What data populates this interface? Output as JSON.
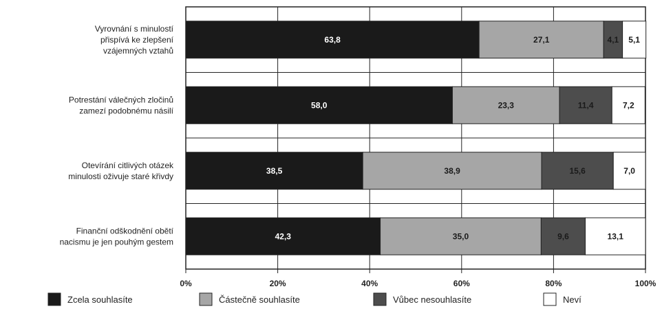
{
  "chart_data": {
    "type": "bar",
    "orientation": "horizontal",
    "stacked": true,
    "categories": [
      [
        "Vyrovnání s minulostí",
        "přispívá ke zlepšení",
        "vzájemných vztahů"
      ],
      [
        "Potrestání válečných zločinů",
        "zamezí podobnému násilí"
      ],
      [
        "Otevírání citlivých otázek",
        "minulosti oživuje staré křivdy"
      ],
      [
        "Finanční odškodnění obětí",
        "nacismu je jen pouhým gestem"
      ]
    ],
    "series": [
      {
        "name": "Zcela souhlasíte",
        "color": "#1a1a1a",
        "label_color": "#ffffff",
        "values": [
          63.8,
          58.0,
          38.5,
          42.3
        ],
        "labels": [
          "63,8",
          "58,0",
          "38,5",
          "42,3"
        ]
      },
      {
        "name": "Částečně souhlasíte",
        "color": "#a6a6a6",
        "label_color": "#1a1a1a",
        "values": [
          27.1,
          23.3,
          38.9,
          35.0
        ],
        "labels": [
          "27,1",
          "23,3",
          "38,9",
          "35,0"
        ]
      },
      {
        "name": "Vůbec nesouhlasíte",
        "color": "#4d4d4d",
        "label_color": "#1a1a1a",
        "values": [
          4.1,
          11.4,
          15.6,
          9.6
        ],
        "labels": [
          "4,1",
          "11,4",
          "15,6",
          "9,6"
        ]
      },
      {
        "name": "Neví",
        "color": "#ffffff",
        "label_color": "#1a1a1a",
        "values": [
          5.1,
          7.2,
          7.0,
          13.1
        ],
        "labels": [
          "5,1",
          "7,2",
          "7,0",
          "13,1"
        ]
      }
    ],
    "xlim": [
      0,
      100
    ],
    "xticks": [
      0,
      20,
      40,
      60,
      80,
      100
    ],
    "xtick_labels": [
      "0%",
      "20%",
      "40%",
      "60%",
      "80%",
      "100%"
    ],
    "grid": true,
    "legend_position": "bottom"
  }
}
